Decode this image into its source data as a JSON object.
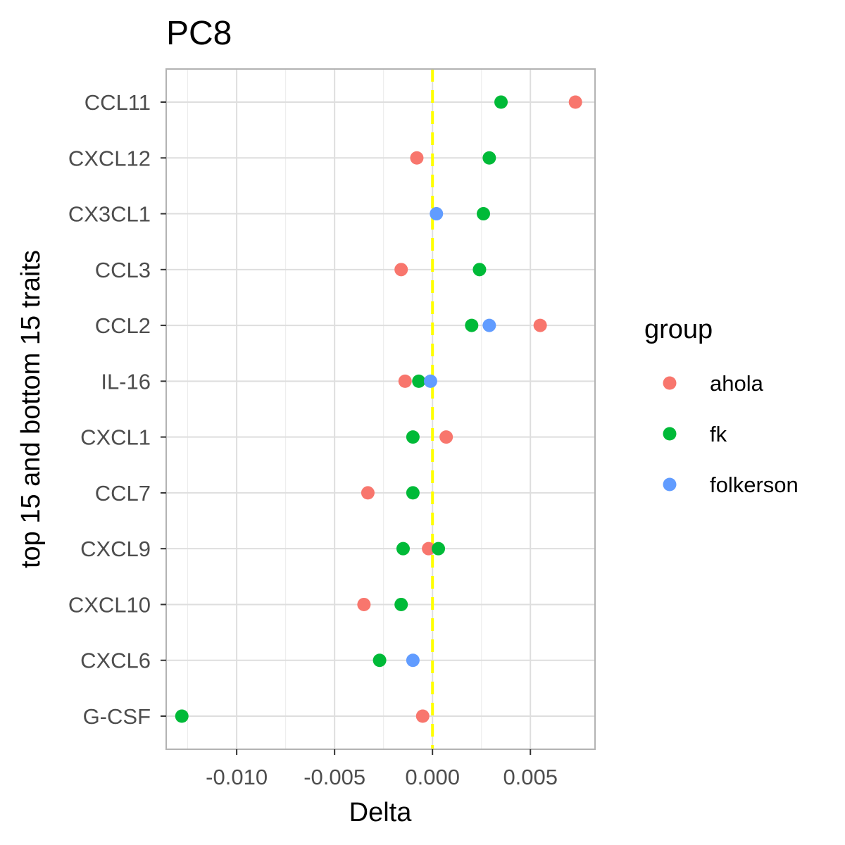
{
  "chart_data": {
    "type": "scatter",
    "title": "PC8",
    "xlabel": "Delta",
    "ylabel": "top 15 and bottom 15 traits",
    "xlim": [
      -0.0136,
      0.0083
    ],
    "x_ticks": [
      -0.01,
      -0.005,
      0.0,
      0.005
    ],
    "x_tick_labels": [
      "-0.010",
      "-0.005",
      "0.000",
      "0.005"
    ],
    "categories": [
      "CCL11",
      "CXCL12",
      "CX3CL1",
      "CCL3",
      "CCL2",
      "IL-16",
      "CXCL1",
      "CCL7",
      "CXCL9",
      "CXCL10",
      "CXCL6",
      "G-CSF"
    ],
    "reference_line": {
      "x": 0,
      "color": "#FFFF00",
      "style": "dashed"
    },
    "grid": true,
    "legend": {
      "title": "group",
      "position": "right"
    },
    "series": [
      {
        "name": "ahola",
        "color": "#F8766D",
        "points": [
          {
            "y": "CCL11",
            "x": 0.0073
          },
          {
            "y": "CXCL12",
            "x": -0.0008
          },
          {
            "y": "CCL3",
            "x": -0.0016
          },
          {
            "y": "CCL2",
            "x": 0.0055
          },
          {
            "y": "IL-16",
            "x": -0.0014
          },
          {
            "y": "CXCL1",
            "x": 0.0007
          },
          {
            "y": "CCL7",
            "x": -0.0033
          },
          {
            "y": "CXCL9",
            "x": -0.0002
          },
          {
            "y": "CXCL10",
            "x": -0.0035
          },
          {
            "y": "G-CSF",
            "x": -0.0005
          }
        ]
      },
      {
        "name": "fk",
        "color": "#00BA38",
        "points": [
          {
            "y": "CCL11",
            "x": 0.0035
          },
          {
            "y": "CXCL12",
            "x": 0.0029
          },
          {
            "y": "CX3CL1",
            "x": 0.0026
          },
          {
            "y": "CCL3",
            "x": 0.0024
          },
          {
            "y": "CCL2",
            "x": 0.002
          },
          {
            "y": "IL-16",
            "x": -0.0007
          },
          {
            "y": "CXCL1",
            "x": -0.001
          },
          {
            "y": "CCL7",
            "x": -0.001
          },
          {
            "y": "CXCL9",
            "x": -0.0015
          },
          {
            "y": "CXCL9",
            "x": 0.0003
          },
          {
            "y": "CXCL10",
            "x": -0.0016
          },
          {
            "y": "CXCL6",
            "x": -0.0027
          },
          {
            "y": "G-CSF",
            "x": -0.0128
          }
        ]
      },
      {
        "name": "folkerson",
        "color": "#619CFF",
        "points": [
          {
            "y": "CX3CL1",
            "x": 0.0002
          },
          {
            "y": "CCL2",
            "x": 0.0029
          },
          {
            "y": "IL-16",
            "x": -0.0001
          },
          {
            "y": "CXCL6",
            "x": -0.001
          }
        ]
      }
    ]
  }
}
